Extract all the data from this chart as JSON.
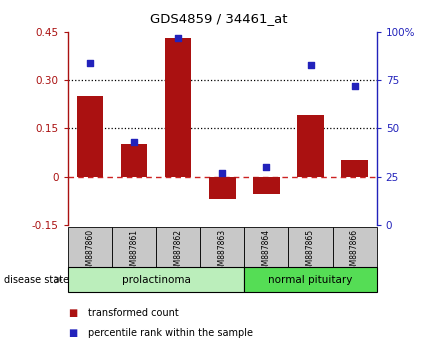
{
  "title": "GDS4859 / 34461_at",
  "samples": [
    "GSM887860",
    "GSM887861",
    "GSM887862",
    "GSM887863",
    "GSM887864",
    "GSM887865",
    "GSM887866"
  ],
  "transformed_count": [
    0.25,
    0.1,
    0.43,
    -0.07,
    -0.055,
    0.19,
    0.05
  ],
  "percentile_rank": [
    84,
    43,
    97,
    27,
    30,
    83,
    72
  ],
  "left_ylim": [
    -0.15,
    0.45
  ],
  "right_ylim": [
    0,
    100
  ],
  "left_yticks": [
    -0.15,
    0,
    0.15,
    0.3,
    0.45
  ],
  "right_yticks": [
    0,
    25,
    50,
    75,
    100
  ],
  "left_ytick_labels": [
    "-0.15",
    "0",
    "0.15",
    "0.30",
    "0.45"
  ],
  "right_ytick_labels": [
    "0",
    "25",
    "50",
    "75",
    "100%"
  ],
  "hlines": [
    0.15,
    0.3
  ],
  "bar_color": "#AA1111",
  "scatter_color": "#2222BB",
  "zero_line_color": "#CC2222",
  "group_labels": [
    "prolactinoma",
    "normal pituitary"
  ],
  "group_ranges": [
    [
      0,
      4
    ],
    [
      4,
      7
    ]
  ],
  "group_colors_light": [
    "#BBEEBB",
    "#55DD55"
  ],
  "sample_label_bg": "#C8C8C8",
  "disease_state_label": "disease state",
  "legend_items": [
    {
      "label": "transformed count",
      "color": "#AA1111"
    },
    {
      "label": "percentile rank within the sample",
      "color": "#2222BB"
    }
  ]
}
